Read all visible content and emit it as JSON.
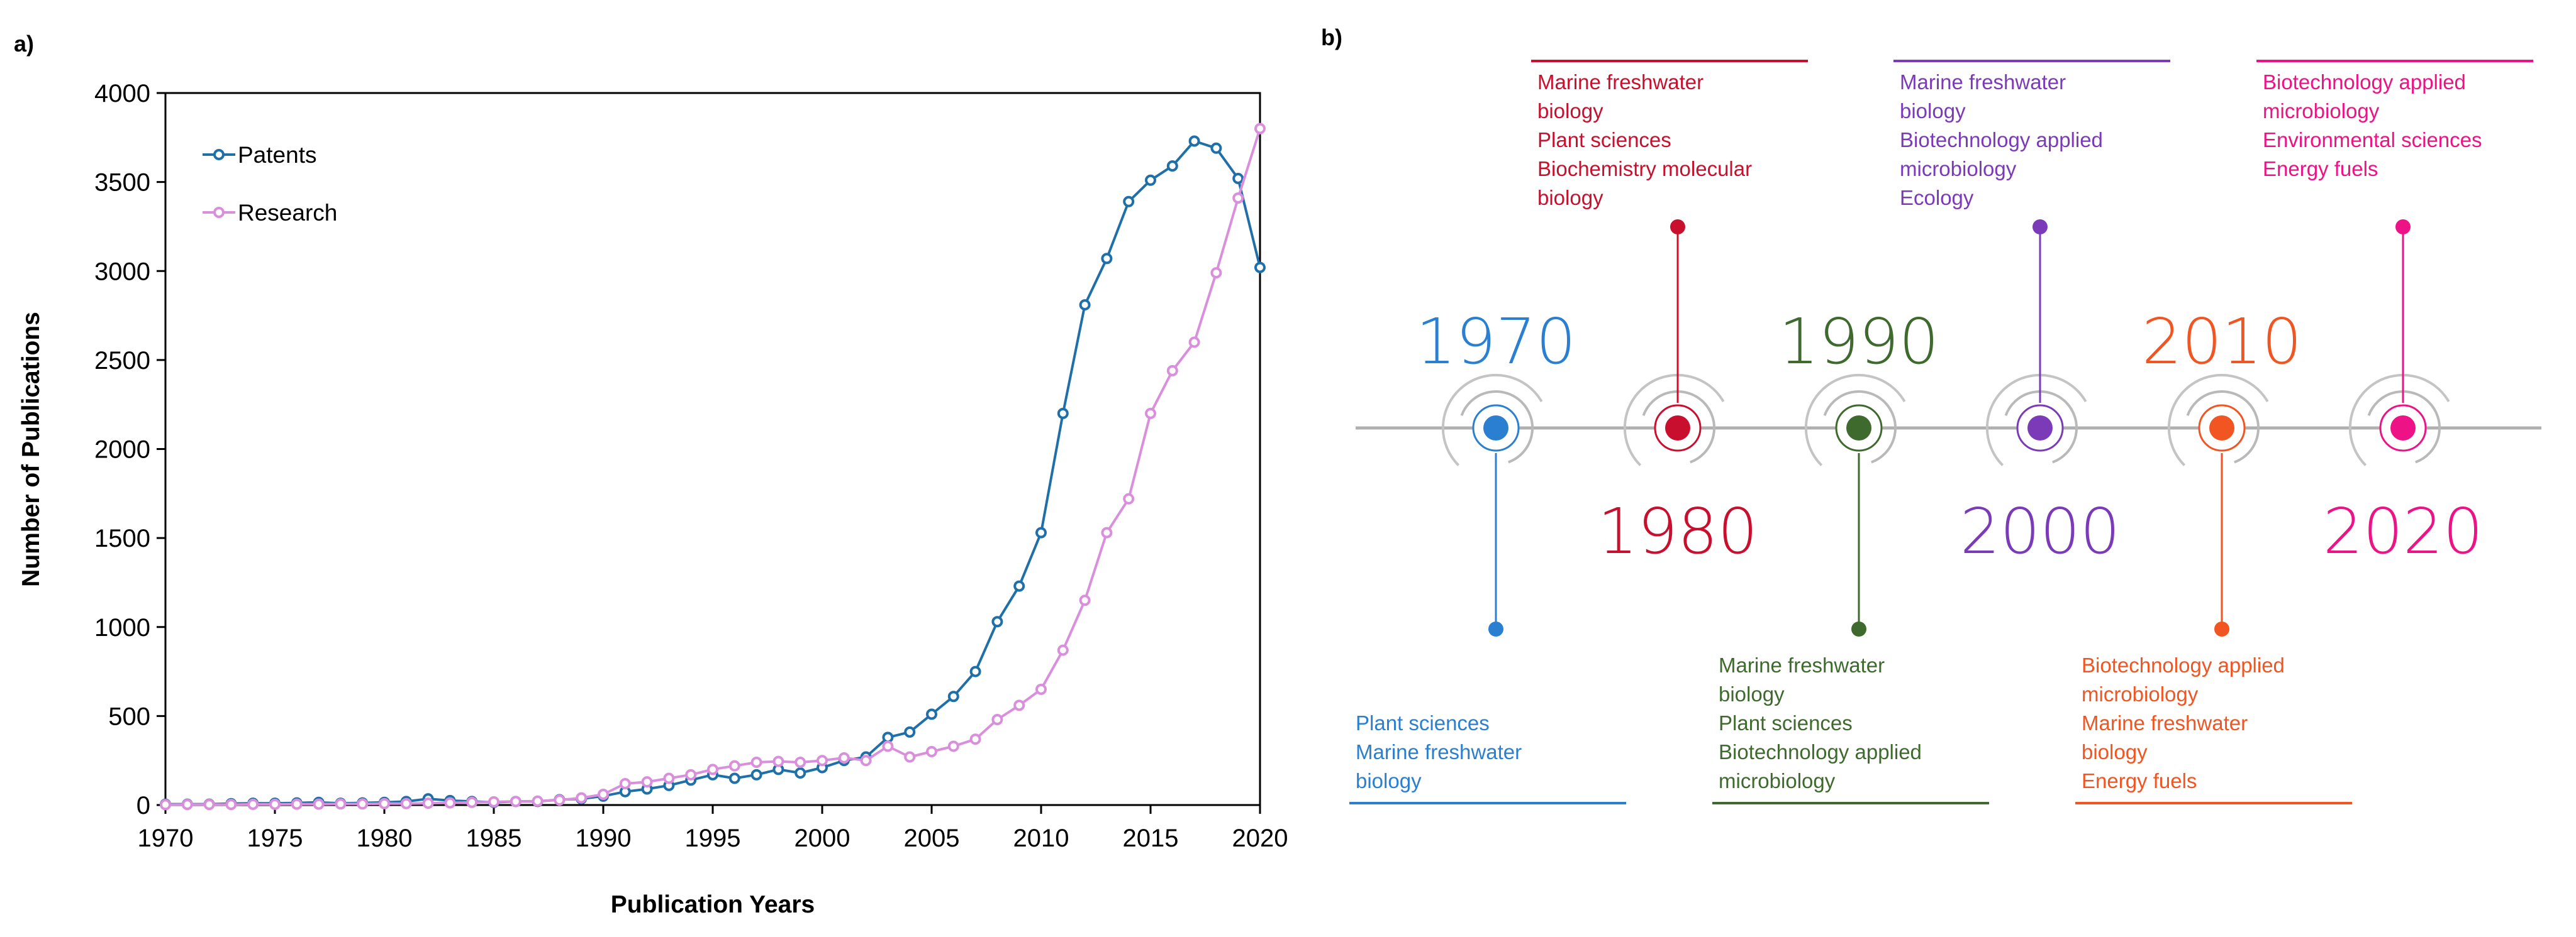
{
  "panels": {
    "a_label": "a)",
    "b_label": "b)"
  },
  "chart_data": [
    {
      "type": "line",
      "title": "",
      "xlabel": "Publication Years",
      "ylabel": "Number of Publications",
      "xlim": [
        1970,
        2020
      ],
      "ylim": [
        0,
        4000
      ],
      "x_ticks": [
        "1970",
        "1975",
        "1980",
        "1985",
        "1990",
        "1995",
        "2000",
        "2005",
        "2010",
        "2015",
        "2020"
      ],
      "y_ticks": [
        "0",
        "500",
        "1000",
        "1500",
        "2000",
        "2500",
        "3000",
        "3500",
        "4000"
      ],
      "grid": false,
      "legend_position": "top-left",
      "x": [
        1970,
        1971,
        1972,
        1973,
        1974,
        1975,
        1976,
        1977,
        1978,
        1979,
        1980,
        1981,
        1982,
        1983,
        1984,
        1985,
        1986,
        1987,
        1988,
        1989,
        1990,
        1991,
        1992,
        1993,
        1994,
        1995,
        1996,
        1997,
        1998,
        1999,
        2000,
        2001,
        2002,
        2003,
        2004,
        2005,
        2006,
        2007,
        2008,
        2009,
        2010,
        2011,
        2012,
        2013,
        2014,
        2015,
        2016,
        2017,
        2018,
        2019,
        2020
      ],
      "series": [
        {
          "name": "Patents",
          "color": "#1f6fa8",
          "values": [
            5,
            5,
            5,
            8,
            10,
            10,
            12,
            15,
            10,
            12,
            15,
            20,
            35,
            25,
            20,
            15,
            20,
            20,
            30,
            35,
            50,
            75,
            90,
            110,
            140,
            170,
            150,
            170,
            200,
            180,
            210,
            250,
            270,
            380,
            410,
            510,
            610,
            750,
            1030,
            1230,
            1530,
            2200,
            2810,
            3070,
            3390,
            3510,
            3590,
            3730,
            3690,
            3520,
            3020
          ]
        },
        {
          "name": "Research",
          "color": "#d98fdc",
          "values": [
            2,
            3,
            3,
            3,
            4,
            4,
            5,
            5,
            6,
            6,
            8,
            8,
            10,
            12,
            15,
            18,
            20,
            22,
            28,
            40,
            60,
            120,
            130,
            150,
            170,
            200,
            220,
            240,
            245,
            240,
            250,
            265,
            250,
            330,
            270,
            300,
            330,
            370,
            480,
            560,
            650,
            870,
            1150,
            1530,
            1720,
            2200,
            2440,
            2600,
            2990,
            3410,
            3800
          ]
        }
      ]
    },
    {
      "type": "timeline",
      "title": "",
      "decades": [
        {
          "year": "1970",
          "color": "#2a7fd0",
          "year_position": "above",
          "stem_direction": "down",
          "topics": [
            "Plant sciences",
            "Marine freshwater",
            "biology"
          ]
        },
        {
          "year": "1980",
          "color": "#c8102e",
          "year_position": "below",
          "stem_direction": "up",
          "topics": [
            "Marine freshwater",
            "biology",
            "Plant sciences",
            "Biochemistry molecular",
            "biology"
          ]
        },
        {
          "year": "1990",
          "color": "#3f6a2e",
          "year_position": "above",
          "stem_direction": "down",
          "topics": [
            "Marine freshwater",
            "biology",
            "Plant sciences",
            "Biotechnology applied",
            "microbiology"
          ]
        },
        {
          "year": "2000",
          "color": "#7b3bb8",
          "year_position": "below",
          "stem_direction": "up",
          "topics": [
            "Marine freshwater",
            "biology",
            "Biotechnology applied",
            "microbiology",
            "Ecology"
          ]
        },
        {
          "year": "2010",
          "color": "#f05522",
          "year_position": "above",
          "stem_direction": "down",
          "topics": [
            "Biotechnology applied",
            "microbiology",
            "Marine freshwater",
            "biology",
            "Energy fuels"
          ]
        },
        {
          "year": "2020",
          "color": "#ee1287",
          "year_position": "below",
          "stem_direction": "up",
          "topics": [
            "Biotechnology applied",
            "microbiology",
            "Environmental sciences",
            "Energy fuels"
          ]
        }
      ]
    }
  ]
}
